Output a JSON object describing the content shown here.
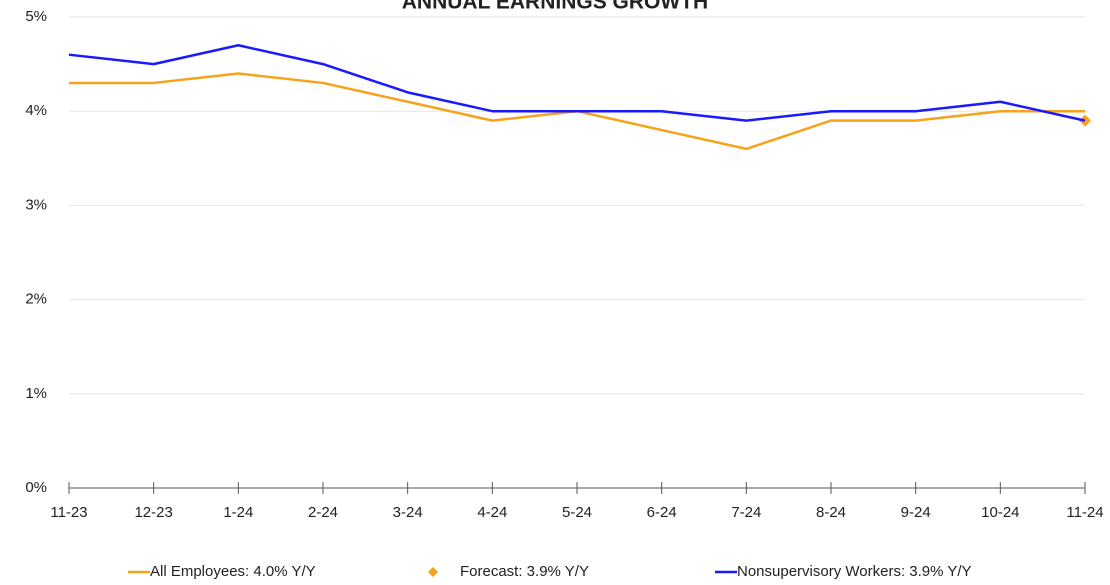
{
  "chart_data": {
    "type": "line",
    "title": "ANNUAL EARNINGS GROWTH",
    "categories": [
      "11-23",
      "12-23",
      "1-24",
      "2-24",
      "3-24",
      "4-24",
      "5-24",
      "6-24",
      "7-24",
      "8-24",
      "9-24",
      "10-24",
      "11-24"
    ],
    "series": [
      {
        "name": "All Employees: 4.0% Y/Y",
        "color": "#f7a21b",
        "marker": "line",
        "values": [
          4.3,
          4.3,
          4.4,
          4.3,
          4.1,
          3.9,
          4.0,
          3.8,
          3.6,
          3.9,
          3.9,
          4.0,
          4.0
        ]
      },
      {
        "name": "Forecast: 3.9% Y/Y",
        "color": "#f7a21b",
        "marker": "diamond",
        "values": [
          null,
          null,
          null,
          null,
          null,
          null,
          null,
          null,
          null,
          null,
          null,
          null,
          3.9
        ]
      },
      {
        "name": "Nonsupervisory Workers: 3.9% Y/Y",
        "color": "#1a1aff",
        "marker": "line",
        "values": [
          4.6,
          4.5,
          4.7,
          4.5,
          4.2,
          4.0,
          4.0,
          4.0,
          3.9,
          4.0,
          4.0,
          4.1,
          3.9
        ]
      }
    ],
    "ylim": [
      0,
      5
    ],
    "yticks": [
      {
        "value": 0,
        "label": "0%"
      },
      {
        "value": 1,
        "label": "1%"
      },
      {
        "value": 2,
        "label": "2%"
      },
      {
        "value": 3,
        "label": "3%"
      },
      {
        "value": 4,
        "label": "4%"
      },
      {
        "value": 5,
        "label": "5%"
      }
    ],
    "grid": true,
    "legend": "bottom"
  }
}
